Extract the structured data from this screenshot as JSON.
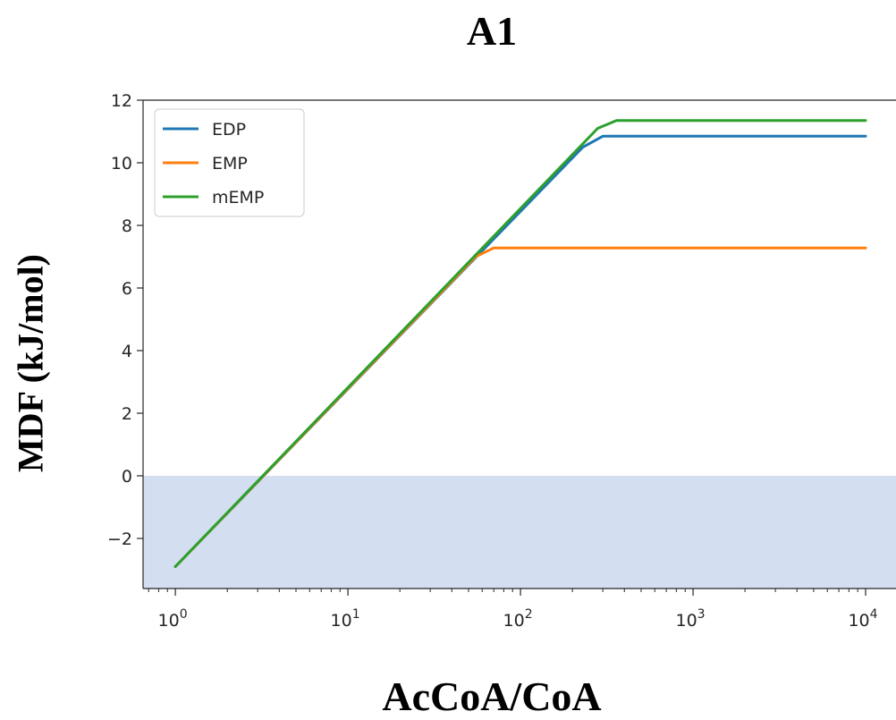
{
  "chart_data": {
    "type": "line",
    "title": "A1",
    "xlabel": "AcCoA/CoA",
    "ylabel": "MDF (kJ/mol)",
    "xscale": "log",
    "xlim": [
      0.65,
      15000
    ],
    "ylim": [
      -3.6,
      12
    ],
    "x_ticks": [
      {
        "value": 1,
        "base": "10",
        "exp": "0"
      },
      {
        "value": 10,
        "base": "10",
        "exp": "1"
      },
      {
        "value": 100,
        "base": "10",
        "exp": "2"
      },
      {
        "value": 1000,
        "base": "10",
        "exp": "3"
      },
      {
        "value": 10000,
        "base": "10",
        "exp": "4"
      }
    ],
    "y_ticks": [
      {
        "value": -2,
        "label": "−2"
      },
      {
        "value": 0,
        "label": "0"
      },
      {
        "value": 2,
        "label": "2"
      },
      {
        "value": 4,
        "label": "4"
      },
      {
        "value": 6,
        "label": "6"
      },
      {
        "value": 8,
        "label": "8"
      },
      {
        "value": 10,
        "label": "10"
      },
      {
        "value": 12,
        "label": "12"
      }
    ],
    "shaded_region": {
      "y_from": -3.6,
      "y_to": 0,
      "color": "#d3dff0"
    },
    "legend_position": "upper-left",
    "grid": false,
    "series": [
      {
        "name": "EDP",
        "color": "#1f77b4",
        "x": [
          1,
          230,
          300,
          10000
        ],
        "y": [
          -2.9,
          10.5,
          10.85,
          10.85
        ]
      },
      {
        "name": "EMP",
        "color": "#ff7f0e",
        "x": [
          1,
          55,
          70,
          10000
        ],
        "y": [
          -2.9,
          7.0,
          7.28,
          7.28
        ]
      },
      {
        "name": "mEMP",
        "color": "#2ca02c",
        "x": [
          1,
          280,
          360,
          10000
        ],
        "y": [
          -2.9,
          11.1,
          11.35,
          11.35
        ]
      }
    ]
  }
}
